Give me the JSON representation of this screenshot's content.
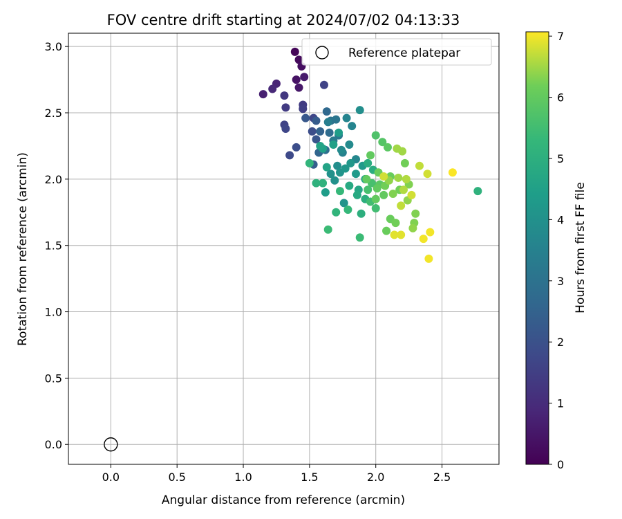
{
  "chart_data": {
    "type": "scatter",
    "title": "FOV centre drift starting at 2024/07/02 04:13:33",
    "xlabel": "Angular distance from reference (arcmin)",
    "ylabel": "Rotation from reference (arcmin)",
    "xlim": [
      -0.32,
      2.93
    ],
    "ylim": [
      -0.15,
      3.1
    ],
    "xticks": [
      "0.0",
      "0.5",
      "1.0",
      "1.5",
      "2.0",
      "2.5"
    ],
    "yticks": [
      "0.0",
      "0.5",
      "1.0",
      "1.5",
      "2.0",
      "2.5",
      "3.0"
    ],
    "grid": true,
    "legend": {
      "placement": "top-right",
      "entries": [
        "Reference platepar"
      ]
    },
    "reference_point": {
      "label": "Reference platepar",
      "x": 0.0,
      "y": 0.0
    },
    "colorbar": {
      "label": "Hours from first FF file",
      "colormap": "viridis",
      "range": [
        0,
        7.07
      ],
      "ticks": [
        "0",
        "1",
        "2",
        "3",
        "4",
        "5",
        "6",
        "7"
      ]
    },
    "points": [
      [
        1.39,
        2.96,
        0.1
      ],
      [
        1.42,
        2.9,
        0.2
      ],
      [
        1.44,
        2.85,
        0.3
      ],
      [
        1.4,
        2.75,
        0.4
      ],
      [
        1.42,
        2.69,
        0.5
      ],
      [
        1.46,
        2.77,
        0.6
      ],
      [
        1.15,
        2.64,
        0.7
      ],
      [
        1.25,
        2.72,
        0.8
      ],
      [
        1.22,
        2.68,
        0.9
      ],
      [
        1.31,
        2.63,
        1.3
      ],
      [
        1.32,
        2.54,
        1.4
      ],
      [
        1.45,
        2.56,
        1.4
      ],
      [
        1.45,
        2.53,
        1.5
      ],
      [
        1.61,
        2.71,
        1.6
      ],
      [
        1.31,
        2.41,
        1.6
      ],
      [
        1.32,
        2.38,
        1.7
      ],
      [
        1.35,
        2.18,
        1.8
      ],
      [
        1.4,
        2.24,
        1.9
      ],
      [
        1.53,
        2.46,
        1.7
      ],
      [
        1.52,
        2.36,
        1.9
      ],
      [
        1.55,
        2.3,
        2.1
      ],
      [
        1.47,
        2.46,
        2.2
      ],
      [
        1.55,
        2.44,
        2.3
      ],
      [
        1.53,
        2.11,
        2.4
      ],
      [
        1.58,
        2.36,
        2.5
      ],
      [
        1.57,
        2.2,
        2.6
      ],
      [
        1.63,
        2.51,
        2.7
      ],
      [
        1.65,
        2.35,
        2.8
      ],
      [
        1.62,
        2.22,
        2.9
      ],
      [
        1.66,
        2.44,
        3.0
      ],
      [
        1.7,
        2.45,
        3.1
      ],
      [
        1.72,
        2.33,
        3.2
      ],
      [
        1.68,
        2.29,
        3.3
      ],
      [
        1.64,
        2.43,
        3.4
      ],
      [
        1.75,
        2.2,
        3.5
      ],
      [
        1.78,
        2.46,
        3.6
      ],
      [
        1.82,
        2.4,
        3.6
      ],
      [
        1.85,
        2.15,
        3.7
      ],
      [
        1.8,
        2.26,
        3.8
      ],
      [
        1.74,
        2.22,
        3.8
      ],
      [
        1.88,
        2.52,
        3.9
      ],
      [
        1.71,
        2.1,
        3.9
      ],
      [
        1.66,
        2.04,
        4.0
      ],
      [
        1.69,
        1.99,
        4.0
      ],
      [
        1.73,
        2.05,
        4.1
      ],
      [
        1.76,
        1.82,
        4.1
      ],
      [
        1.77,
        2.08,
        4.2
      ],
      [
        1.81,
        2.12,
        4.2
      ],
      [
        1.85,
        2.04,
        4.3
      ],
      [
        1.9,
        2.1,
        4.3
      ],
      [
        1.62,
        1.9,
        4.4
      ],
      [
        1.72,
        2.35,
        4.4
      ],
      [
        1.68,
        2.26,
        4.5
      ],
      [
        1.6,
        2.23,
        4.5
      ],
      [
        1.58,
        2.25,
        4.6
      ],
      [
        1.63,
        2.09,
        4.6
      ],
      [
        1.87,
        1.92,
        4.7
      ],
      [
        1.92,
        2.0,
        4.7
      ],
      [
        1.8,
        1.95,
        4.8
      ],
      [
        1.86,
        1.88,
        4.8
      ],
      [
        1.94,
        2.12,
        4.9
      ],
      [
        1.98,
        2.07,
        4.9
      ],
      [
        1.89,
        1.74,
        5.0
      ],
      [
        1.92,
        1.85,
        5.0
      ],
      [
        1.55,
        1.97,
        5.1
      ],
      [
        1.6,
        1.97,
        5.1
      ],
      [
        1.5,
        2.12,
        5.2
      ],
      [
        1.7,
        1.75,
        5.2
      ],
      [
        1.73,
        1.91,
        5.3
      ],
      [
        1.79,
        1.77,
        5.3
      ],
      [
        1.64,
        1.62,
        5.4
      ],
      [
        1.88,
        1.56,
        5.4
      ],
      [
        1.96,
        1.83,
        5.5
      ],
      [
        2.0,
        1.78,
        5.5
      ],
      [
        1.94,
        1.92,
        5.6
      ],
      [
        1.97,
        1.97,
        5.6
      ],
      [
        2.0,
        2.33,
        5.7
      ],
      [
        2.05,
        2.28,
        5.8
      ],
      [
        2.09,
        2.24,
        5.9
      ],
      [
        2.03,
        1.96,
        5.9
      ],
      [
        2.06,
        1.88,
        6.0
      ],
      [
        2.01,
        1.93,
        6.0
      ],
      [
        1.96,
        2.18,
        6.0
      ],
      [
        1.93,
        2.0,
        6.0
      ],
      [
        2.11,
        2.02,
        6.1
      ],
      [
        2.08,
        1.61,
        6.1
      ],
      [
        2.11,
        1.7,
        6.1
      ],
      [
        2.15,
        1.67,
        6.2
      ],
      [
        2.18,
        1.92,
        6.2
      ],
      [
        2.22,
        2.12,
        6.2
      ],
      [
        2.25,
        1.96,
        6.3
      ],
      [
        2.3,
        1.74,
        6.3
      ],
      [
        2.29,
        1.67,
        6.3
      ],
      [
        2.28,
        1.63,
        6.4
      ],
      [
        2.24,
        1.84,
        6.4
      ],
      [
        2.16,
        2.23,
        6.5
      ],
      [
        2.2,
        2.21,
        6.5
      ],
      [
        2.23,
        2.0,
        6.6
      ],
      [
        2.33,
        2.1,
        6.7
      ],
      [
        2.39,
        2.04,
        6.8
      ],
      [
        2.27,
        1.88,
        6.8
      ],
      [
        2.14,
        1.58,
        6.9
      ],
      [
        2.19,
        1.58,
        6.9
      ],
      [
        2.36,
        1.55,
        7.0
      ],
      [
        2.41,
        1.6,
        7.0
      ],
      [
        2.4,
        1.4,
        7.0
      ],
      [
        2.58,
        2.05,
        7.05
      ],
      [
        2.77,
        1.91,
        5.1
      ],
      [
        2.0,
        1.85,
        6.0
      ],
      [
        2.02,
        2.05,
        6.1
      ],
      [
        2.07,
        1.95,
        6.2
      ],
      [
        2.13,
        1.89,
        6.3
      ],
      [
        2.1,
        1.99,
        6.4
      ],
      [
        2.17,
        2.01,
        6.5
      ],
      [
        2.21,
        1.92,
        6.6
      ],
      [
        2.19,
        1.8,
        6.7
      ],
      [
        2.06,
        2.02,
        6.8
      ]
    ]
  }
}
